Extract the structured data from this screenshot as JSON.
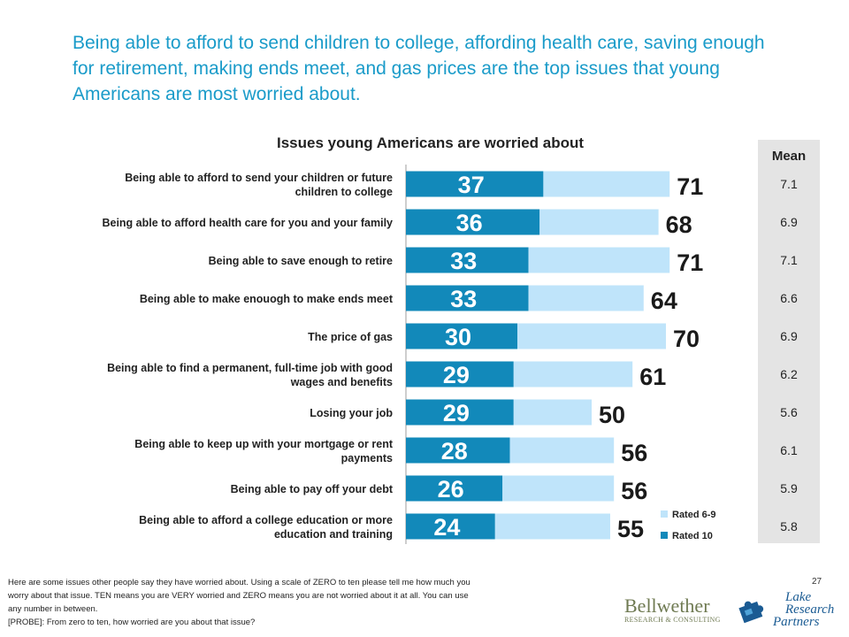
{
  "headline": "Being able to afford to send children to college, affording health care, saving enough for retirement, making ends meet, and gas prices are the top issues that young Americans are most worried about.",
  "colors": {
    "rated10": "#1289ba",
    "rated69": "#bfe4fa",
    "headline": "#1a9bc9",
    "mean_panel": "#e4e4e4"
  },
  "chart_data": {
    "type": "bar",
    "orientation": "horizontal",
    "stacked": true,
    "title": "Issues young Americans are worried about",
    "categories": [
      "Being able to afford to send your children or future children to college",
      "Being able to afford health care for you and your family",
      "Being able to save enough to retire",
      "Being able to make enouogh to make ends meet",
      "The price of gas",
      "Being able to find a permanent, full-time job with good wages and benefits",
      "Losing your job",
      "Being able to keep up with your mortgage or rent payments",
      "Being able to pay off your debt",
      "Being able to afford a college education or more education and training"
    ],
    "series": [
      {
        "name": "Rated 10",
        "values": [
          37,
          36,
          33,
          33,
          30,
          29,
          29,
          28,
          26,
          24
        ]
      },
      {
        "name": "Rated 6-9",
        "values": [
          34,
          32,
          38,
          31,
          40,
          32,
          21,
          28,
          30,
          31
        ]
      }
    ],
    "totals": [
      71,
      68,
      71,
      64,
      70,
      61,
      50,
      56,
      56,
      55
    ],
    "xlim": [
      0,
      100
    ],
    "legend_position": "bottom-right",
    "grid": false
  },
  "mean": {
    "header": "Mean",
    "values": [
      "7.1",
      "6.9",
      "7.1",
      "6.6",
      "6.9",
      "6.2",
      "5.6",
      "6.1",
      "5.9",
      "5.8"
    ]
  },
  "footnote": {
    "lines": [
      "Here are some issues other people say they have worried about. Using a scale of ZERO to ten please tell me how much you",
      "worry about that issue.  TEN means you are VERY worried and ZERO means you are not worried about it at all.  You can use",
      "any number in between.",
      "[PROBE]: From zero to ten, how worried are you about that issue?"
    ]
  },
  "page_number": "27",
  "logos": {
    "bellwether": {
      "name": "Bellwether",
      "sub": "RESEARCH & CONSULTING"
    },
    "lake_research": {
      "lines": [
        "Lake",
        "Research",
        "Partners"
      ]
    }
  }
}
